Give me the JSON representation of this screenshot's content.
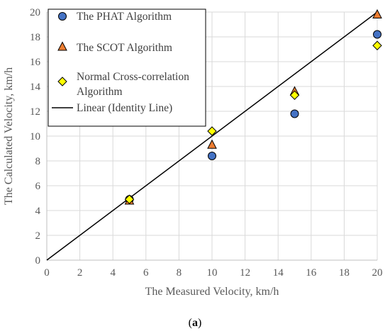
{
  "chart_data": {
    "type": "scatter",
    "xlabel": "The Measured Velocity, km/h",
    "ylabel": "The Calculated Velocity, km/h",
    "xlim": [
      0,
      20
    ],
    "ylim": [
      0,
      20
    ],
    "x_ticks": [
      "0",
      "2",
      "4",
      "6",
      "8",
      "10",
      "12",
      "14",
      "16",
      "18",
      "20"
    ],
    "y_ticks": [
      "0",
      "2",
      "4",
      "6",
      "8",
      "10",
      "12",
      "14",
      "16",
      "18",
      "20"
    ],
    "grid": true,
    "legend_position": "top-left",
    "series": [
      {
        "name": "The PHAT Algorithm",
        "marker": "circle",
        "color": "#4472C4",
        "points": [
          [
            5,
            4.9
          ],
          [
            10,
            8.4
          ],
          [
            15,
            11.8
          ],
          [
            20,
            18.2
          ]
        ]
      },
      {
        "name": "The SCOT Algorithm",
        "marker": "triangle",
        "color": "#ED7D31",
        "points": [
          [
            5,
            4.8
          ],
          [
            10,
            9.3
          ],
          [
            15,
            13.6
          ],
          [
            20,
            19.8
          ]
        ]
      },
      {
        "name": "Normal Cross-correlation Algorithm",
        "legend_lines": [
          "Normal Cross-correlation",
          "Algorithm"
        ],
        "marker": "diamond",
        "color": "#FFFF00",
        "points": [
          [
            5,
            4.9
          ],
          [
            10,
            10.4
          ],
          [
            15,
            13.3
          ],
          [
            20,
            17.3
          ]
        ]
      }
    ],
    "line": {
      "name": "Linear (Identity Line)",
      "color": "#000000",
      "points": [
        [
          0,
          0
        ],
        [
          20,
          20
        ]
      ]
    }
  },
  "caption": {
    "open": "(",
    "label": "a",
    "close": ")"
  }
}
